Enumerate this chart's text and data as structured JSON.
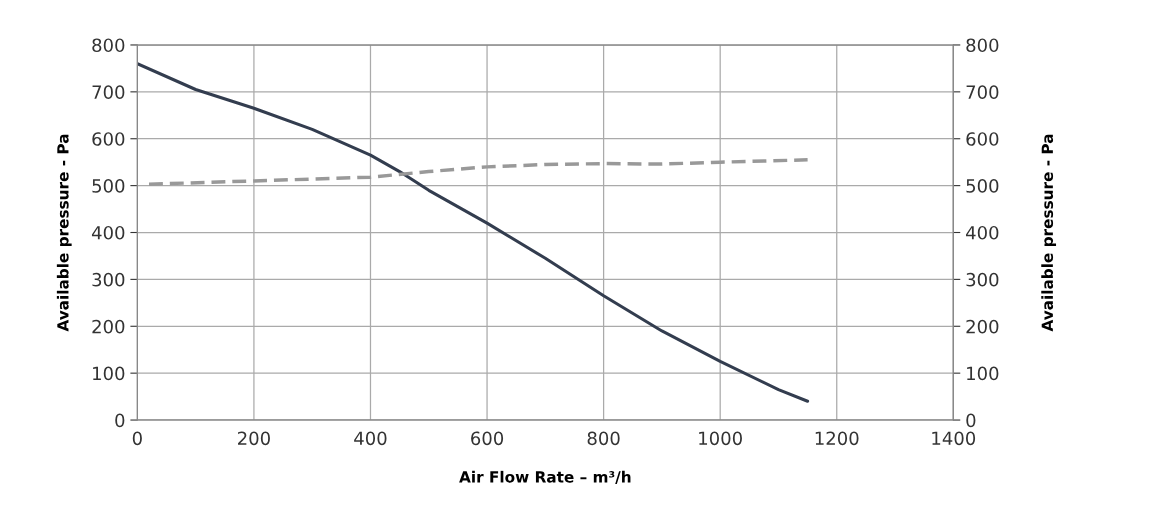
{
  "chart_data": {
    "type": "line",
    "xlabel": "Air Flow Rate – m³/h",
    "ylabel": "Available pressure - Pa",
    "y2label": "Available pressure - Pa",
    "xlim": [
      0,
      1400
    ],
    "xticks": [
      0,
      200,
      400,
      600,
      800,
      1000,
      1200,
      1400
    ],
    "ylim": [
      0,
      800
    ],
    "yticks": [
      0,
      100,
      200,
      300,
      400,
      500,
      600,
      700,
      800
    ],
    "y2lim": [
      0,
      800
    ],
    "y2ticks": [
      0,
      100,
      200,
      300,
      400,
      500,
      600,
      700,
      800
    ],
    "grid": true,
    "series": [
      {
        "color": "#333d4f",
        "line_style": "solid",
        "x": [
          0,
          100,
          200,
          300,
          400,
          450,
          500,
          600,
          700,
          800,
          900,
          1000,
          1100,
          1150
        ],
        "values": [
          760,
          705,
          665,
          620,
          565,
          530,
          490,
          420,
          345,
          265,
          190,
          125,
          65,
          40
        ]
      },
      {
        "color": "#999999",
        "line_style": "dashed",
        "axis": "y2",
        "x": [
          20,
          200,
          400,
          500,
          600,
          700,
          800,
          900,
          1000,
          1150
        ],
        "values": [
          503,
          510,
          518,
          530,
          540,
          545,
          547,
          546,
          550,
          555
        ]
      }
    ]
  }
}
